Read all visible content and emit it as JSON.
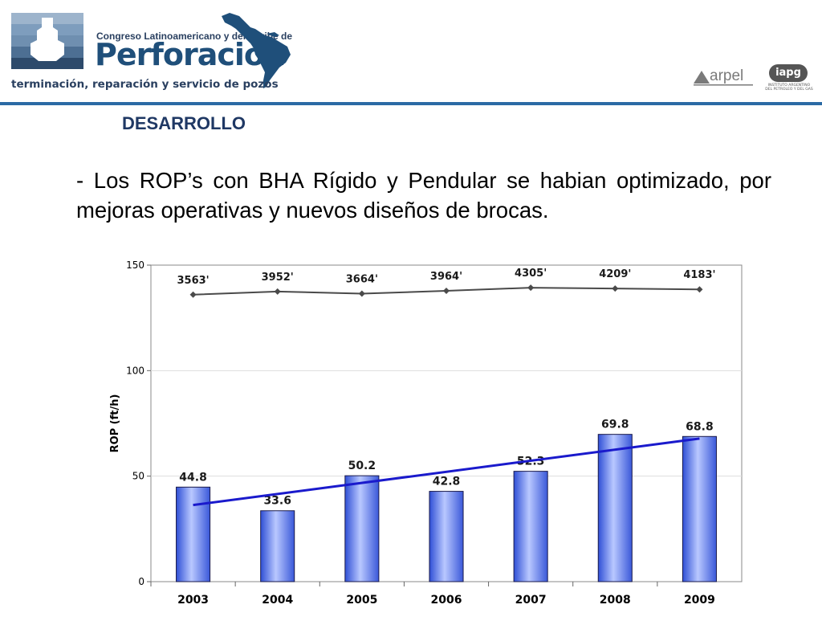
{
  "header": {
    "conference_name": "Congreso Latinoamericano y del Caribe de",
    "conference_title": "Perforación",
    "tagline": "terminación, reparación y servicio de pozos",
    "sponsor_1": "arpel",
    "sponsor_2": "iapg",
    "sponsor_2_subtitle": "INSTITUTO ARGENTINO DEL PETROLEO Y DEL GAS"
  },
  "section_title": "DESARROLLO",
  "body_text": "- Los ROP’s con BHA Rígido y Pendular se habian optimizado, por mejoras operativas y nuevos diseños de brocas.",
  "colors": {
    "header_rule": "#2b6aa5",
    "section_title": "#1f3864",
    "bar_fill": "#7f9cf5",
    "trend_line": "#1a1acc",
    "depth_line": "#4a4a4a"
  },
  "chart_data": {
    "type": "bar",
    "categories": [
      "2003",
      "2004",
      "2005",
      "2006",
      "2007",
      "2008",
      "2009"
    ],
    "series": [
      {
        "values": [
          44.8,
          33.6,
          50.2,
          42.8,
          52.3,
          69.8,
          68.8
        ],
        "labels": [
          "44.8",
          "33.6",
          "50.2",
          "42.8",
          "52.3",
          "69.8",
          "68.8"
        ]
      }
    ],
    "depth_line": {
      "type": "line",
      "values": [
        136,
        137.5,
        136.5,
        137.8,
        139.3,
        138.9,
        138.5
      ],
      "labels": [
        "3563'",
        "3952'",
        "3664'",
        "3964'",
        "4305'",
        "4209'",
        "4183'"
      ]
    },
    "trend_line": {
      "type": "line",
      "from": 36.3,
      "to": 67.8
    },
    "ylabel": "ROP (ft/h)",
    "xlabel": "",
    "ylim": [
      0,
      150
    ],
    "yticks": [
      "0",
      "50",
      "100",
      "150"
    ],
    "ytick_values": [
      0,
      50,
      100,
      150
    ],
    "grid": true
  }
}
